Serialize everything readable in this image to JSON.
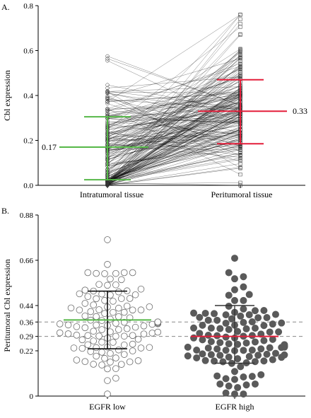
{
  "chart_data": [
    {
      "panel": "A.",
      "type": "line",
      "description_kind": "paired before-after plot",
      "ylabel": "Cbl expression",
      "ylim": [
        0,
        0.8
      ],
      "yticks": [
        "0.0",
        "0.2",
        "0.4",
        "0.6",
        "0.8"
      ],
      "categories": [
        "Intratumoral tissue",
        "Peritumoral tissue"
      ],
      "summary": [
        {
          "category": "Intratumoral tissue",
          "mean": 0.17,
          "sd_low": 0.025,
          "sd_high": 0.305,
          "color": "#56b848",
          "label": "0.17"
        },
        {
          "category": "Peritumoral tissue",
          "mean": 0.33,
          "sd_low": 0.185,
          "sd_high": 0.47,
          "color": "#e41e3a",
          "label": "0.33"
        }
      ],
      "pairs_min_max": {
        "intratumoral": [
          0.0,
          0.575
        ],
        "peritumoral": [
          0.0,
          0.76
        ]
      }
    },
    {
      "panel": "B.",
      "type": "scatter",
      "ylabel": "Peritumoral Cbl expression",
      "ylim": [
        0,
        0.88
      ],
      "yticks": [
        "0",
        "0.22",
        "0.29",
        "0.36",
        "0.44",
        "0.66",
        "0.88"
      ],
      "reference_lines": [
        0.36,
        0.29
      ],
      "categories": [
        "EGFR low",
        "EGFR high"
      ],
      "groups": [
        {
          "name": "EGFR low",
          "marker": "open",
          "mean": 0.37,
          "sd_low": 0.23,
          "sd_high": 0.51,
          "mean_color": "#56b848",
          "range": [
            0.01,
            0.76
          ]
        },
        {
          "name": "EGFR high",
          "marker": "filled",
          "mean": 0.29,
          "sd_low": 0.16,
          "sd_high": 0.44,
          "mean_color": "#e41e3a",
          "range": [
            0.01,
            0.67
          ]
        }
      ]
    }
  ]
}
